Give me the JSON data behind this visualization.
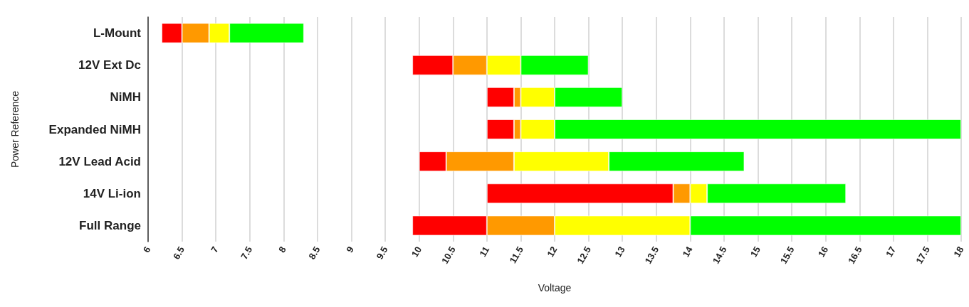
{
  "chart_data": {
    "type": "bar",
    "orientation": "horizontal",
    "xlabel": "Voltage",
    "ylabel": "Power Reference",
    "categories": [
      "L-Mount",
      "12V Ext Dc",
      "NiMH",
      "Expanded NiMH",
      "12V Lead Acid",
      "14V Li-ion",
      "Full Range"
    ],
    "series": [
      {
        "color": "#ff0000",
        "base": [
          6.2,
          9.9,
          11.0,
          11.0,
          10.0,
          11.0,
          9.9
        ],
        "values": [
          0.3,
          0.6,
          0.4,
          0.4,
          0.4,
          2.75,
          1.1
        ]
      },
      {
        "color": "#ff9900",
        "base": [
          6.5,
          10.5,
          11.4,
          11.4,
          10.4,
          13.75,
          11.0
        ],
        "values": [
          0.4,
          0.5,
          0.1,
          0.1,
          1.0,
          0.25,
          1.0
        ]
      },
      {
        "color": "#ffff00",
        "base": [
          6.9,
          11.0,
          11.5,
          11.5,
          11.4,
          14.0,
          12.0
        ],
        "values": [
          0.3,
          0.5,
          0.5,
          0.5,
          1.4,
          0.25,
          2.0
        ]
      },
      {
        "color": "#00ff00",
        "base": [
          7.2,
          11.5,
          12.0,
          12.0,
          12.8,
          14.25,
          14.0
        ],
        "values": [
          1.1,
          1.0,
          1.0,
          6.0,
          2.0,
          2.05,
          4.0
        ]
      }
    ],
    "xlim": [
      6,
      18
    ],
    "xticks": [
      6,
      6.5,
      7,
      7.5,
      8,
      8.5,
      9,
      9.5,
      10,
      10.5,
      11,
      11.5,
      12,
      12.5,
      13,
      13.5,
      14,
      14.5,
      15,
      15.5,
      16,
      16.5,
      17,
      17.5,
      18
    ],
    "grid": "x"
  }
}
